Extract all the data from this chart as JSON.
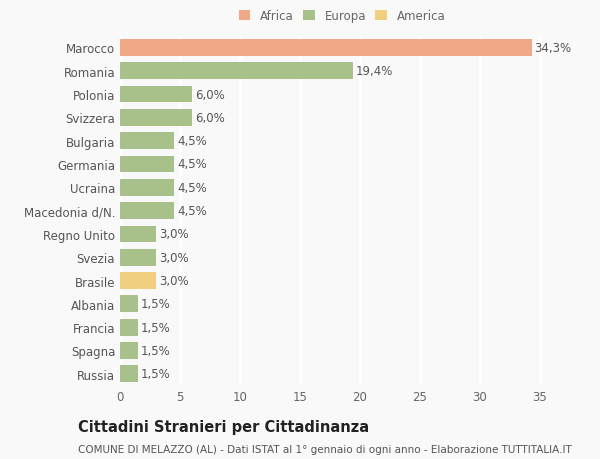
{
  "countries": [
    "Marocco",
    "Romania",
    "Polonia",
    "Svizzera",
    "Bulgaria",
    "Germania",
    "Ucraina",
    "Macedonia d/N.",
    "Regno Unito",
    "Svezia",
    "Brasile",
    "Albania",
    "Francia",
    "Spagna",
    "Russia"
  ],
  "values": [
    34.3,
    19.4,
    6.0,
    6.0,
    4.5,
    4.5,
    4.5,
    4.5,
    3.0,
    3.0,
    3.0,
    1.5,
    1.5,
    1.5,
    1.5
  ],
  "labels": [
    "34,3%",
    "19,4%",
    "6,0%",
    "6,0%",
    "4,5%",
    "4,5%",
    "4,5%",
    "4,5%",
    "3,0%",
    "3,0%",
    "3,0%",
    "1,5%",
    "1,5%",
    "1,5%",
    "1,5%"
  ],
  "colors": [
    "#F0A987",
    "#A8C08A",
    "#A8C08A",
    "#A8C08A",
    "#A8C08A",
    "#A8C08A",
    "#A8C08A",
    "#A8C08A",
    "#A8C08A",
    "#A8C08A",
    "#F0D080",
    "#A8C08A",
    "#A8C08A",
    "#A8C08A",
    "#A8C08A"
  ],
  "legend": [
    {
      "label": "Africa",
      "color": "#F0A987"
    },
    {
      "label": "Europa",
      "color": "#A8C08A"
    },
    {
      "label": "America",
      "color": "#F0D080"
    }
  ],
  "xlim": [
    0,
    37
  ],
  "xticks": [
    0,
    5,
    10,
    15,
    20,
    25,
    30,
    35
  ],
  "title": "Cittadini Stranieri per Cittadinanza",
  "subtitle": "COMUNE DI MELAZZO (AL) - Dati ISTAT al 1° gennaio di ogni anno - Elaborazione TUTTITALIA.IT",
  "background_color": "#f9f9f9",
  "plot_bg_color": "#f9f9f9",
  "grid_color": "#ffffff",
  "bar_height": 0.72,
  "label_fontsize": 8.5,
  "tick_fontsize": 8.5,
  "title_fontsize": 10.5,
  "subtitle_fontsize": 7.5
}
